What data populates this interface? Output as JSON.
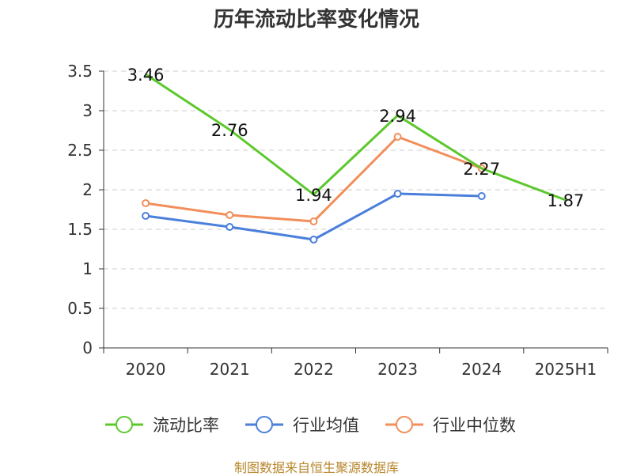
{
  "chart_data": {
    "type": "line",
    "title": "历年流动比率变化情况",
    "categories": [
      "2020",
      "2021",
      "2022",
      "2023",
      "2024",
      "2025H1"
    ],
    "ylim": [
      0,
      3.5
    ],
    "yticks": [
      "0",
      "0.5",
      "1",
      "1.5",
      "2",
      "2.5",
      "3",
      "3.5"
    ],
    "grid": true,
    "legend_position": "bottom",
    "series": [
      {
        "name": "流动比率",
        "color": "#5cc82c",
        "values": [
          3.46,
          2.76,
          1.94,
          2.94,
          2.27,
          1.87
        ],
        "labels": [
          "3.46",
          "2.76",
          "1.94",
          "2.94",
          "2.27",
          "1.87"
        ],
        "show_markers": false
      },
      {
        "name": "行业均值",
        "color": "#4a7fdb",
        "values": [
          1.67,
          1.53,
          1.37,
          1.95,
          1.92,
          null
        ],
        "show_markers": true
      },
      {
        "name": "行业中位数",
        "color": "#f28e5a",
        "values": [
          1.83,
          1.68,
          1.6,
          2.67,
          2.27,
          null
        ],
        "show_markers": true
      }
    ]
  },
  "footer": {
    "source": "制图数据来自恒生聚源数据库"
  }
}
